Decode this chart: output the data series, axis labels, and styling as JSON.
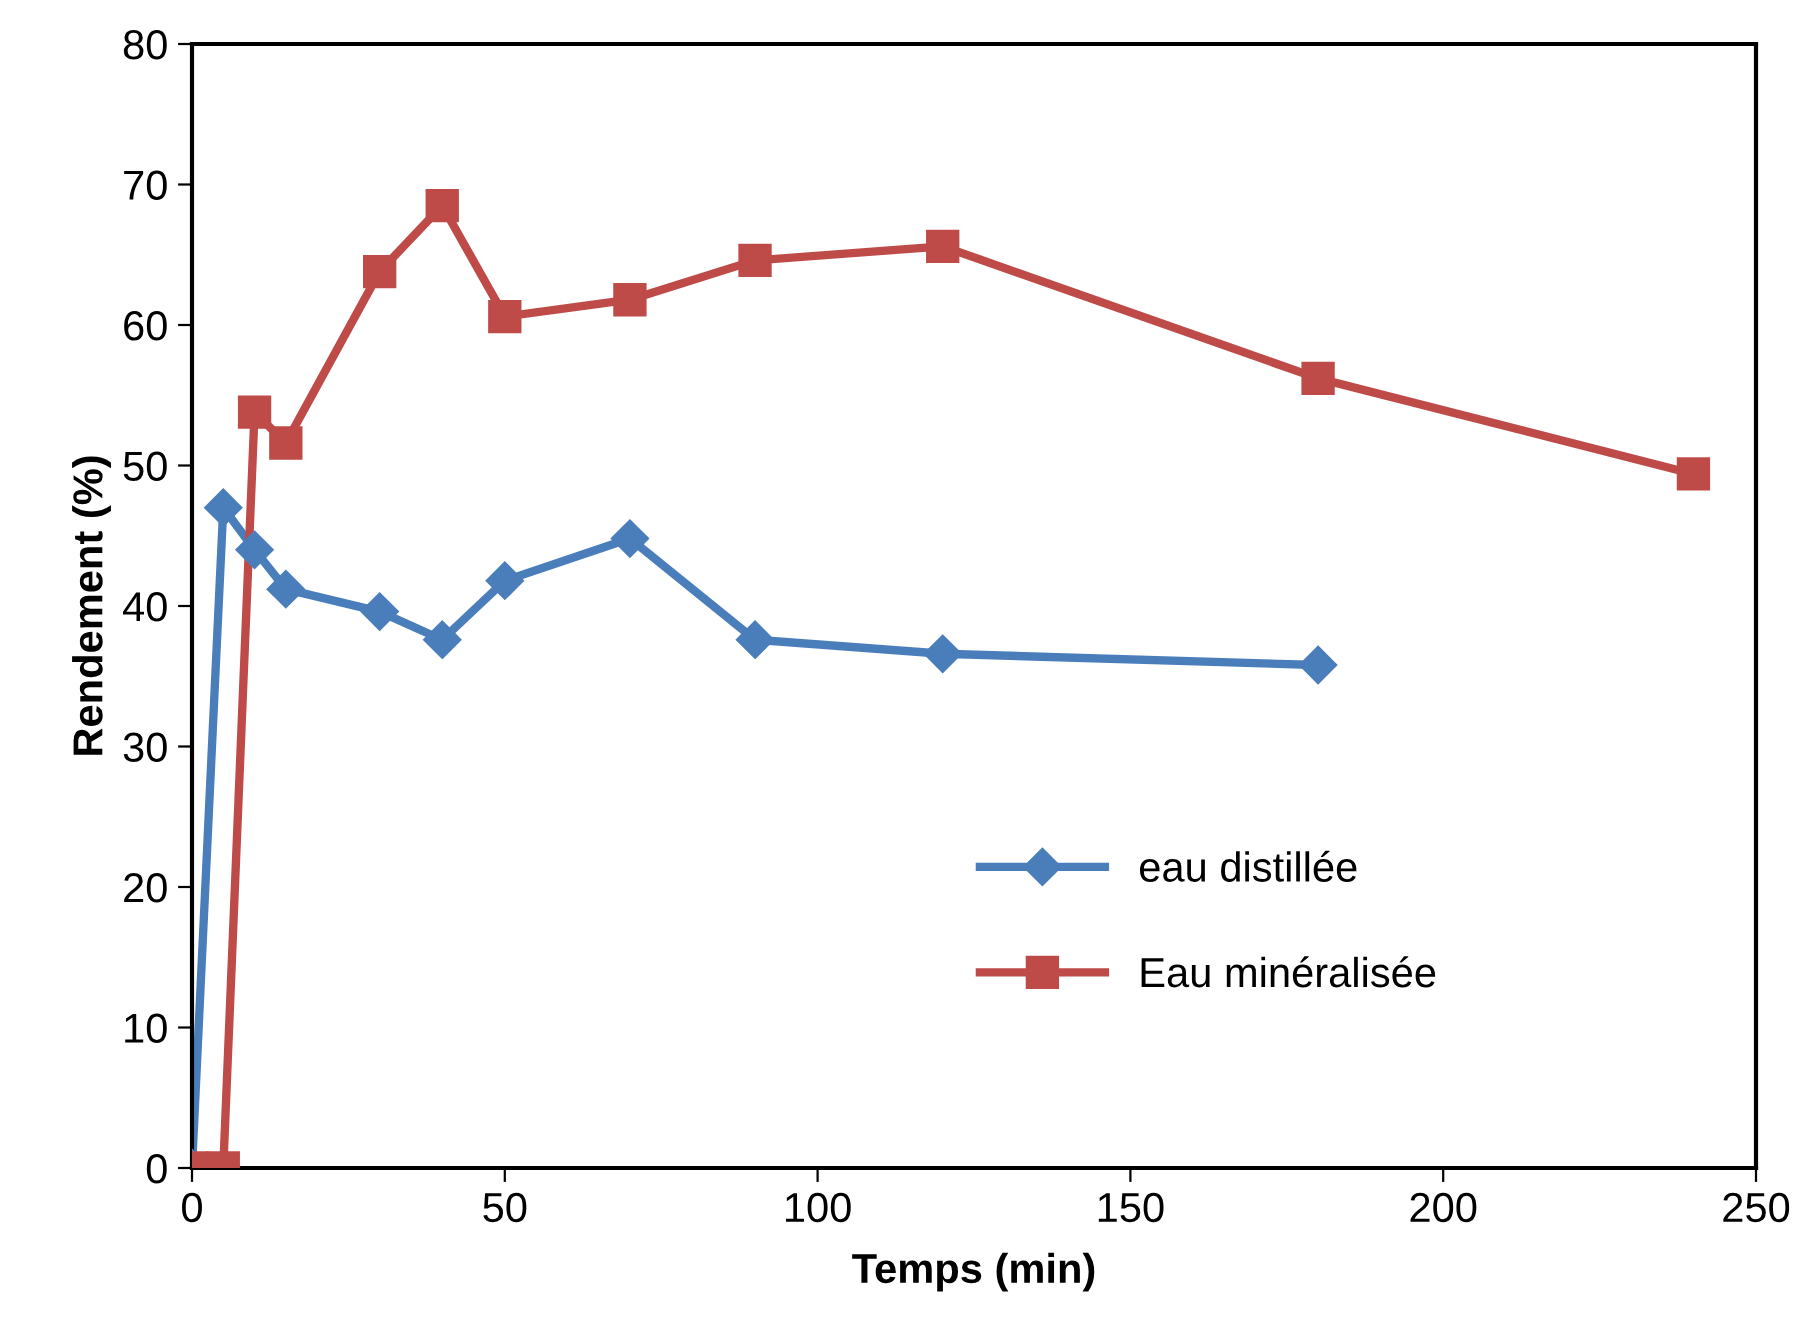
{
  "chart_data": {
    "type": "line",
    "xlabel": "Temps (min)",
    "ylabel": "Rendement (%)",
    "xlim": [
      0,
      250
    ],
    "xticks": [
      0,
      50,
      100,
      150,
      200,
      250
    ],
    "ylim": [
      0,
      80
    ],
    "yticks": [
      0,
      10,
      20,
      30,
      40,
      50,
      60,
      70,
      80
    ],
    "grid": false,
    "legend": "bottom right",
    "line_style": "solid",
    "series": [
      {
        "name": "eau distillée",
        "color": "#4a7ebb",
        "marker": "diamond",
        "x": [
          0,
          5,
          10,
          15,
          30,
          40,
          50,
          70,
          90,
          120,
          180
        ],
        "values": [
          0,
          47,
          44,
          41.2,
          39.6,
          37.6,
          41.8,
          44.8,
          37.6,
          36.6,
          35.8
        ]
      },
      {
        "name": "Eau minéralisée",
        "color": "#be4b48",
        "marker": "square",
        "x": [
          0,
          5,
          10,
          15,
          30,
          40,
          50,
          70,
          90,
          120,
          180,
          240
        ],
        "values": [
          0,
          0,
          53.8,
          51.6,
          63.8,
          68.5,
          60.6,
          61.8,
          64.6,
          65.6,
          56.2,
          49.4
        ]
      }
    ]
  }
}
